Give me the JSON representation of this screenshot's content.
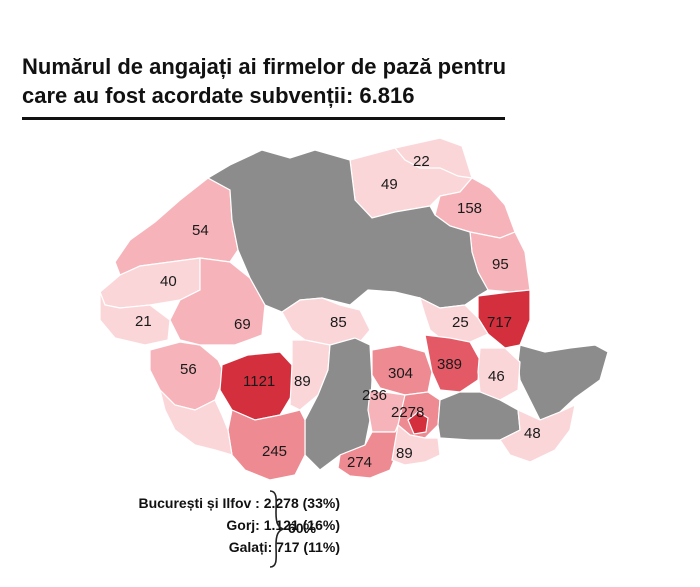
{
  "title_line1": "Numărul de angajați ai firmelor de pază pentru",
  "title_line2": "care au fost acordate subvenții: 6.816",
  "colors": {
    "no_data": "#8c8c8c",
    "very_light": "#fbd6d8",
    "light": "#f6b4ba",
    "medium": "#ee8a92",
    "strong": "#e35a66",
    "dark": "#d42f3d"
  },
  "county_values": [
    {
      "label": "22"
    },
    {
      "label": "49"
    },
    {
      "label": "158"
    },
    {
      "label": "54"
    },
    {
      "label": "95"
    },
    {
      "label": "40"
    },
    {
      "label": "21"
    },
    {
      "label": "69"
    },
    {
      "label": "85"
    },
    {
      "label": "25"
    },
    {
      "label": "717"
    },
    {
      "label": "56"
    },
    {
      "label": "1121"
    },
    {
      "label": "89"
    },
    {
      "label": "304"
    },
    {
      "label": "389"
    },
    {
      "label": "46"
    },
    {
      "label": "236"
    },
    {
      "label": "2278"
    },
    {
      "label": "48"
    },
    {
      "label": "245"
    },
    {
      "label": "274"
    },
    {
      "label": "89"
    }
  ],
  "summary": {
    "line1": "București și Ilfov : 2.278 (33%)",
    "line2": "Gorj: 1.121 (16%)",
    "line3": "Galați: 717 (11%)",
    "total_pct": "60%"
  }
}
